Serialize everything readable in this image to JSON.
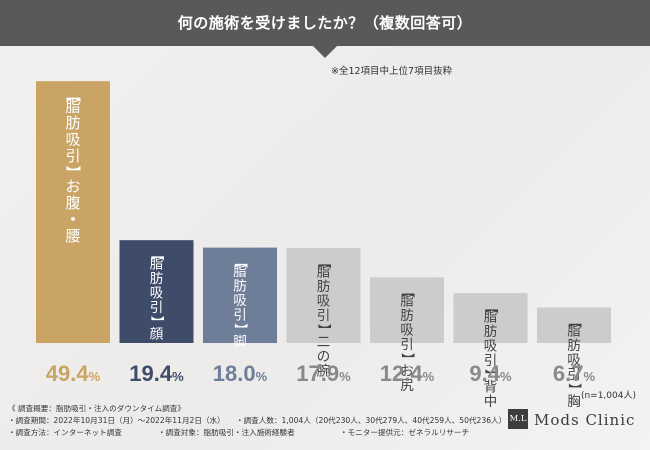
{
  "header": {
    "title": "何の施術を受けましたか？（複数回答可）"
  },
  "note": "※全12項目中上位7項目抜粋",
  "chart_data": {
    "type": "bar",
    "title": "何の施術を受けましたか？（複数回答可）",
    "categories": [
      "【脂肪吸引】お腹・腰",
      "【脂肪吸引】顔",
      "【脂肪吸引】脚",
      "【脂肪吸引】二の腕",
      "【脂肪吸引】お尻",
      "【脂肪吸引】背中",
      "【脂肪吸引】胸"
    ],
    "labels": [
      {
        "bracket": "【脂肪吸引】",
        "rest": "お腹・腰"
      },
      {
        "bracket": "【脂肪吸引】",
        "rest": "顔"
      },
      {
        "bracket": "【脂肪吸引】",
        "rest": "脚"
      },
      {
        "bracket": "【脂肪吸引】",
        "rest": "二の腕"
      },
      {
        "bracket": "【脂肪吸引】",
        "rest": "お尻"
      },
      {
        "bracket": "【脂肪吸引】",
        "rest": "背中"
      },
      {
        "bracket": "【脂肪吸引】",
        "rest": "胸"
      }
    ],
    "values": [
      49.4,
      19.4,
      18.0,
      17.9,
      12.4,
      9.4,
      6.7
    ],
    "value_labels": [
      {
        "int": "49.4",
        "unit": "%"
      },
      {
        "int": "19.4",
        "unit": "%"
      },
      {
        "int": "18.0",
        "unit": "%"
      },
      {
        "int": "17.9",
        "unit": "%"
      },
      {
        "int": "12.4",
        "unit": "%"
      },
      {
        "int": "9.4",
        "unit": "%"
      },
      {
        "int": "6.7",
        "unit": "%"
      }
    ],
    "colors": [
      "#c9a464",
      "#3f4c69",
      "#6f7e98",
      "#cccccc",
      "#cccccc",
      "#cccccc",
      "#cccccc"
    ],
    "value_colors": [
      "#c9a464",
      "#3f4c69",
      "#6f7e98",
      "#8a8a8a",
      "#8a8a8a",
      "#8a8a8a",
      "#8a8a8a"
    ],
    "label_text_colors": [
      "#ffffff",
      "#ffffff",
      "#ffffff",
      "#444444",
      "#444444",
      "#444444",
      "#444444"
    ],
    "ylim": [
      0,
      50
    ],
    "grid": false,
    "legend": "none",
    "n_label": "(n=1,004人)"
  },
  "footer": {
    "survey_title": "《 調査概要：脂肪吸引・注入のダウンタイム調査》",
    "period": "・調査期間：2022年10月31日（月）〜2022年11月2日（水）",
    "respondents": "・調査人数：1,004人（20代230人、30代279人、40代259人、50代236人）",
    "method": "・調査方法：インターネット調査",
    "target": "・調査対象：脂肪吸引・注入施術経験者",
    "monitor": "・モニター提供元：ゼネラルリサーチ"
  },
  "logo": {
    "mark": "M.L",
    "text": "Mods Clinic"
  }
}
